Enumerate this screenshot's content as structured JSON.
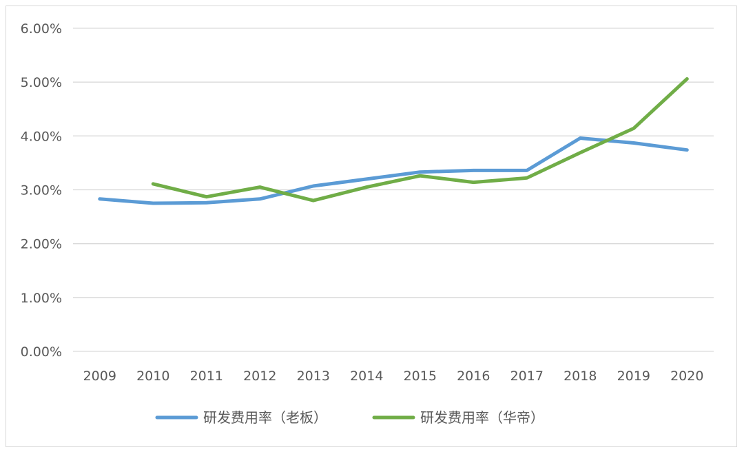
{
  "chart_data": {
    "type": "line",
    "title": "",
    "xlabel": "",
    "ylabel": "",
    "categories": [
      "2009",
      "2010",
      "2011",
      "2012",
      "2013",
      "2014",
      "2015",
      "2016",
      "2017",
      "2018",
      "2019",
      "2020"
    ],
    "ylim": [
      0,
      0.06
    ],
    "yticks": [
      "0.00%",
      "1.00%",
      "2.00%",
      "3.00%",
      "4.00%",
      "5.00%",
      "6.00%"
    ],
    "grid": true,
    "legend_position": "bottom",
    "series": [
      {
        "name": "研发费用率（老板）",
        "color": "#5b9bd5",
        "values": [
          0.0283,
          0.0275,
          0.0276,
          0.0283,
          0.0307,
          0.032,
          0.0333,
          0.0336,
          0.0336,
          0.0396,
          0.0387,
          0.0374
        ]
      },
      {
        "name": "研发费用率（华帝）",
        "color": "#70ad47",
        "values": [
          null,
          0.0311,
          0.0287,
          0.0305,
          0.028,
          0.0305,
          0.0326,
          0.0314,
          0.0322,
          0.0369,
          0.0414,
          0.0506
        ]
      }
    ]
  }
}
